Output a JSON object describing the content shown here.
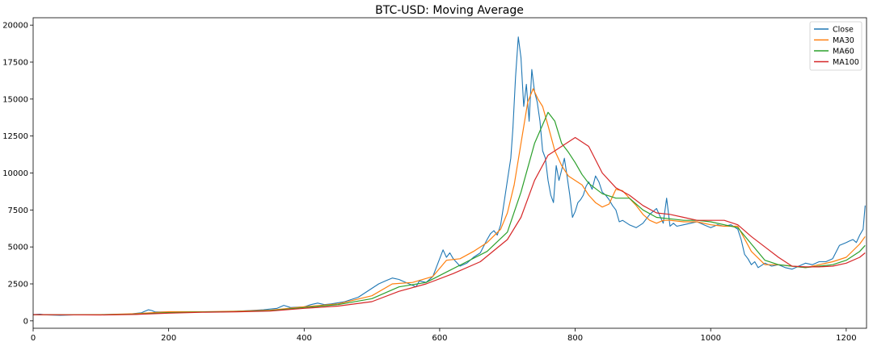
{
  "chart_data": {
    "type": "line",
    "title": "BTC-USD: Moving Average",
    "xlabel": "",
    "ylabel": "",
    "xlim": [
      0,
      1230
    ],
    "ylim": [
      -500,
      20500
    ],
    "x_ticks": [
      0,
      200,
      400,
      600,
      800,
      1000,
      1200
    ],
    "y_ticks": [
      0,
      2500,
      5000,
      7500,
      10000,
      12500,
      15000,
      17500,
      20000
    ],
    "grid": false,
    "legend_position": "top-right",
    "series": [
      {
        "name": "Close",
        "color": "#1f77b4",
        "x": [
          0,
          10,
          20,
          40,
          60,
          80,
          100,
          120,
          140,
          160,
          165,
          170,
          175,
          180,
          200,
          220,
          240,
          260,
          280,
          300,
          320,
          340,
          360,
          370,
          380,
          400,
          410,
          420,
          430,
          440,
          460,
          480,
          500,
          510,
          520,
          530,
          540,
          550,
          560,
          565,
          570,
          580,
          590,
          600,
          605,
          610,
          615,
          620,
          630,
          640,
          650,
          660,
          670,
          675,
          680,
          685,
          690,
          695,
          700,
          705,
          708,
          712,
          716,
          720,
          724,
          728,
          732,
          736,
          740,
          744,
          748,
          752,
          756,
          760,
          764,
          768,
          772,
          776,
          780,
          784,
          788,
          792,
          796,
          800,
          804,
          808,
          812,
          816,
          820,
          825,
          830,
          835,
          840,
          845,
          850,
          855,
          860,
          865,
          870,
          880,
          890,
          900,
          910,
          920,
          930,
          935,
          940,
          945,
          950,
          960,
          970,
          980,
          990,
          1000,
          1010,
          1020,
          1030,
          1040,
          1045,
          1050,
          1055,
          1060,
          1065,
          1070,
          1080,
          1090,
          1100,
          1110,
          1120,
          1130,
          1140,
          1150,
          1160,
          1170,
          1180,
          1190,
          1200,
          1205,
          1210,
          1215,
          1220,
          1225,
          1228
        ],
        "values": [
          420,
          450,
          400,
          380,
          400,
          410,
          420,
          430,
          450,
          550,
          650,
          750,
          700,
          600,
          600,
          620,
          600,
          620,
          610,
          650,
          700,
          750,
          850,
          1050,
          900,
          950,
          1100,
          1200,
          1100,
          1150,
          1300,
          1600,
          2200,
          2500,
          2700,
          2900,
          2800,
          2600,
          2400,
          2300,
          2700,
          2600,
          3000,
          4200,
          4800,
          4300,
          4600,
          4200,
          3700,
          3900,
          4300,
          4600,
          5500,
          5900,
          6100,
          5800,
          6500,
          8000,
          9500,
          11000,
          13000,
          16500,
          19200,
          17800,
          14500,
          16000,
          13500,
          17000,
          15500,
          14800,
          13500,
          11500,
          11000,
          9500,
          8500,
          8000,
          10500,
          9500,
          10200,
          11000,
          9800,
          8500,
          7000,
          7400,
          8000,
          8200,
          8500,
          9100,
          9400,
          8900,
          9800,
          9400,
          8700,
          8500,
          8200,
          7800,
          7500,
          6700,
          6800,
          6500,
          6300,
          6600,
          7200,
          7600,
          6600,
          8300,
          6400,
          6600,
          6400,
          6500,
          6600,
          6700,
          6500,
          6300,
          6500,
          6400,
          6500,
          6200,
          5500,
          4500,
          4200,
          3800,
          4000,
          3600,
          3900,
          3700,
          3800,
          3600,
          3500,
          3700,
          3900,
          3800,
          4000,
          4000,
          4200,
          5100,
          5300,
          5400,
          5500,
          5300,
          5800,
          6200,
          7800
        ]
      },
      {
        "name": "MA30",
        "color": "#ff7f0e",
        "x": [
          0,
          50,
          100,
          150,
          200,
          250,
          300,
          350,
          400,
          450,
          500,
          530,
          560,
          590,
          610,
          630,
          650,
          670,
          690,
          700,
          710,
          720,
          730,
          738,
          745,
          752,
          760,
          770,
          780,
          790,
          800,
          810,
          820,
          830,
          840,
          850,
          860,
          870,
          880,
          890,
          900,
          910,
          920,
          930,
          940,
          960,
          980,
          1000,
          1020,
          1040,
          1060,
          1080,
          1100,
          1120,
          1140,
          1160,
          1180,
          1200,
          1220,
          1228
        ],
        "values": [
          420,
          410,
          420,
          480,
          620,
          620,
          650,
          720,
          950,
          1150,
          1700,
          2500,
          2600,
          3000,
          4100,
          4200,
          4700,
          5300,
          6200,
          7300,
          9200,
          12000,
          14800,
          15700,
          15000,
          14500,
          13200,
          11500,
          10500,
          9800,
          9500,
          9200,
          8500,
          8000,
          7700,
          7900,
          8900,
          8800,
          8300,
          7800,
          7200,
          6800,
          6600,
          6800,
          6800,
          6700,
          6700,
          6500,
          6400,
          6400,
          4700,
          3800,
          3800,
          3700,
          3600,
          3800,
          4000,
          4300,
          5200,
          5700
        ]
      },
      {
        "name": "MA60",
        "color": "#2ca02c",
        "x": [
          0,
          50,
          100,
          150,
          200,
          250,
          300,
          350,
          400,
          450,
          500,
          540,
          580,
          610,
          640,
          670,
          700,
          720,
          740,
          760,
          770,
          780,
          790,
          800,
          810,
          820,
          840,
          860,
          880,
          900,
          920,
          940,
          960,
          980,
          1000,
          1020,
          1040,
          1060,
          1080,
          1100,
          1120,
          1140,
          1160,
          1180,
          1200,
          1220,
          1228
        ],
        "values": [
          420,
          410,
          410,
          450,
          560,
          600,
          630,
          690,
          900,
          1100,
          1500,
          2300,
          2600,
          3300,
          4000,
          4700,
          6000,
          8700,
          12000,
          14100,
          13500,
          12000,
          11400,
          10700,
          9900,
          9300,
          8600,
          8300,
          8300,
          7500,
          7000,
          6900,
          6800,
          6800,
          6700,
          6500,
          6300,
          5200,
          4100,
          3800,
          3700,
          3600,
          3700,
          3800,
          4100,
          4700,
          5100
        ]
      },
      {
        "name": "MA100",
        "color": "#d62728",
        "x": [
          0,
          50,
          100,
          150,
          200,
          250,
          300,
          350,
          400,
          450,
          500,
          540,
          580,
          620,
          660,
          700,
          720,
          740,
          760,
          780,
          800,
          820,
          840,
          860,
          880,
          900,
          920,
          940,
          960,
          980,
          1000,
          1020,
          1040,
          1060,
          1080,
          1100,
          1120,
          1140,
          1160,
          1180,
          1200,
          1220,
          1228
        ],
        "values": [
          420,
          410,
          400,
          430,
          520,
          580,
          610,
          660,
          850,
          1000,
          1300,
          2000,
          2500,
          3200,
          4000,
          5500,
          7000,
          9500,
          11200,
          11800,
          12400,
          11800,
          10000,
          9000,
          8500,
          7800,
          7300,
          7200,
          7000,
          6800,
          6800,
          6800,
          6500,
          5700,
          5000,
          4300,
          3700,
          3650,
          3650,
          3700,
          3900,
          4300,
          4600
        ]
      }
    ]
  }
}
